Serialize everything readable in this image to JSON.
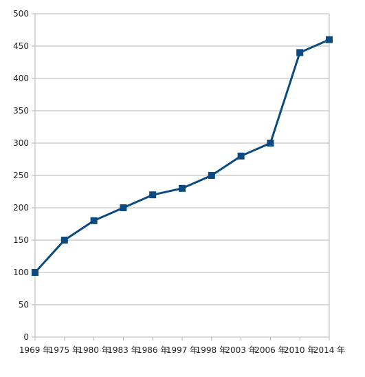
{
  "chart_data": {
    "type": "line",
    "categories": [
      "1969 年",
      "1975 年",
      "1980 年",
      "1983 年",
      "1986 年",
      "1997 年",
      "1998 年",
      "2003 年",
      "2006 年",
      "2010 年",
      "2014 年"
    ],
    "series": [
      {
        "values": [
          100,
          150,
          180,
          200,
          220,
          230,
          250,
          280,
          300,
          440,
          460
        ],
        "color": "#0b4a80"
      }
    ],
    "yticks": [
      0,
      50,
      100,
      150,
      200,
      250,
      300,
      350,
      400,
      450,
      500
    ],
    "ylim": [
      0,
      500
    ],
    "grid": true,
    "legend": "none",
    "marker": "square",
    "title": "",
    "xlabel": "",
    "ylabel": ""
  }
}
